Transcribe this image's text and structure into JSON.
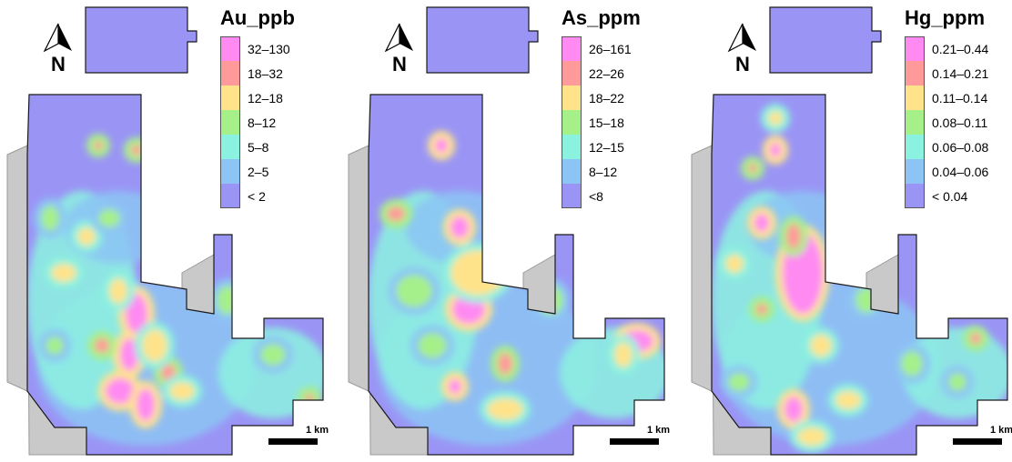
{
  "north_label": "N",
  "scale_label": "1 km",
  "icons": {
    "north_arrow": "north-arrow-icon"
  },
  "palette": {
    "outline": "#1a1a1a",
    "hillshade": "#c9c9c9",
    "class_colors": [
      "#ff8af2",
      "#ff9a9a",
      "#ffe38a",
      "#a6f08a",
      "#8cf2e0",
      "#8cc4f5",
      "#9a95f5"
    ]
  },
  "maps": [
    {
      "element": "Au",
      "legend": {
        "title": "Au_ppb",
        "classes": [
          {
            "range": "32–130",
            "color": "#ff8af2"
          },
          {
            "range": "18–32",
            "color": "#ff9a9a"
          },
          {
            "range": "12–18",
            "color": "#ffe38a"
          },
          {
            "range": "8–12",
            "color": "#a6f08a"
          },
          {
            "range": "5–8",
            "color": "#8cf2e0"
          },
          {
            "range": "2–5",
            "color": "#8cc4f5"
          },
          {
            "range": "< 2",
            "color": "#9a95f5"
          }
        ]
      }
    },
    {
      "element": "As",
      "legend": {
        "title": "As_ppm",
        "classes": [
          {
            "range": "26–161",
            "color": "#ff8af2"
          },
          {
            "range": "22–26",
            "color": "#ff9a9a"
          },
          {
            "range": "18–22",
            "color": "#ffe38a"
          },
          {
            "range": "15–18",
            "color": "#a6f08a"
          },
          {
            "range": "12–15",
            "color": "#8cf2e0"
          },
          {
            "range": "8–12",
            "color": "#8cc4f5"
          },
          {
            "range": "<8",
            "color": "#9a95f5"
          }
        ]
      }
    },
    {
      "element": "Hg",
      "legend": {
        "title": "Hg_ppm",
        "classes": [
          {
            "range": "0.21–0.44",
            "color": "#ff8af2"
          },
          {
            "range": "0.14–0.21",
            "color": "#ff9a9a"
          },
          {
            "range": "0.11–0.14",
            "color": "#ffe38a"
          },
          {
            "range": "0.08–0.11",
            "color": "#a6f08a"
          },
          {
            "range": "0.06–0.08",
            "color": "#8cf2e0"
          },
          {
            "range": "0.04–0.06",
            "color": "#8cc4f5"
          },
          {
            "range": "< 0.04",
            "color": "#9a95f5"
          }
        ]
      }
    }
  ]
}
